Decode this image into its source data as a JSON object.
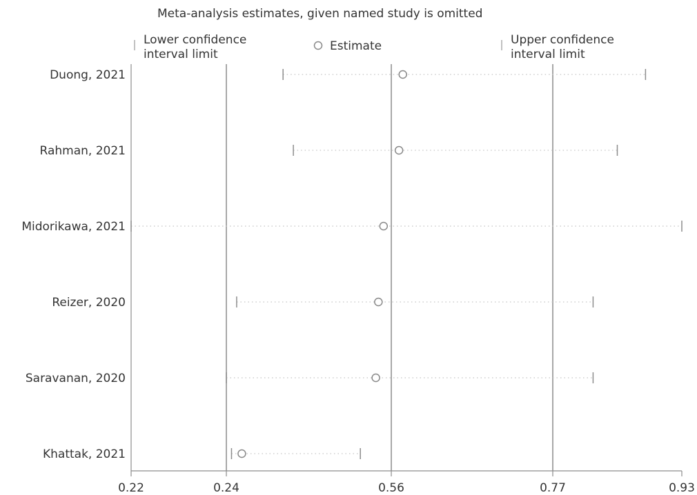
{
  "chart_data": {
    "type": "scatter",
    "title": "Meta-analysis estimates, given named study is omitted",
    "legend": {
      "lower": [
        "Lower confidence",
        "interval limit"
      ],
      "estimate": "Estimate",
      "upper": [
        "Upper confidence",
        "interval limit"
      ]
    },
    "xticks": [
      {
        "value": 0.22,
        "label": "0.22"
      },
      {
        "value": 0.24,
        "label": "0.24"
      },
      {
        "value": 0.56,
        "label": "0.56"
      },
      {
        "value": 0.77,
        "label": "0.77"
      },
      {
        "value": 0.93,
        "label": "0.93"
      }
    ],
    "reference_lines": [
      0.24,
      0.56,
      0.77
    ],
    "studies": [
      {
        "name": "Duong, 2021",
        "lower": 0.35,
        "estimate": 0.575,
        "upper": 0.885
      },
      {
        "name": "Rahman, 2021",
        "lower": 0.37,
        "estimate": 0.57,
        "upper": 0.85
      },
      {
        "name": "Midorikawa, 2021",
        "lower": 0.22,
        "estimate": 0.545,
        "upper": 0.93
      },
      {
        "name": "Reizer, 2020",
        "lower": 0.26,
        "estimate": 0.535,
        "upper": 0.82
      },
      {
        "name": "Saravanan, 2020",
        "lower": 0.24,
        "estimate": 0.53,
        "upper": 0.82
      },
      {
        "name": "Khattak, 2021",
        "lower": 0.25,
        "estimate": 0.27,
        "upper": 0.5
      }
    ]
  }
}
